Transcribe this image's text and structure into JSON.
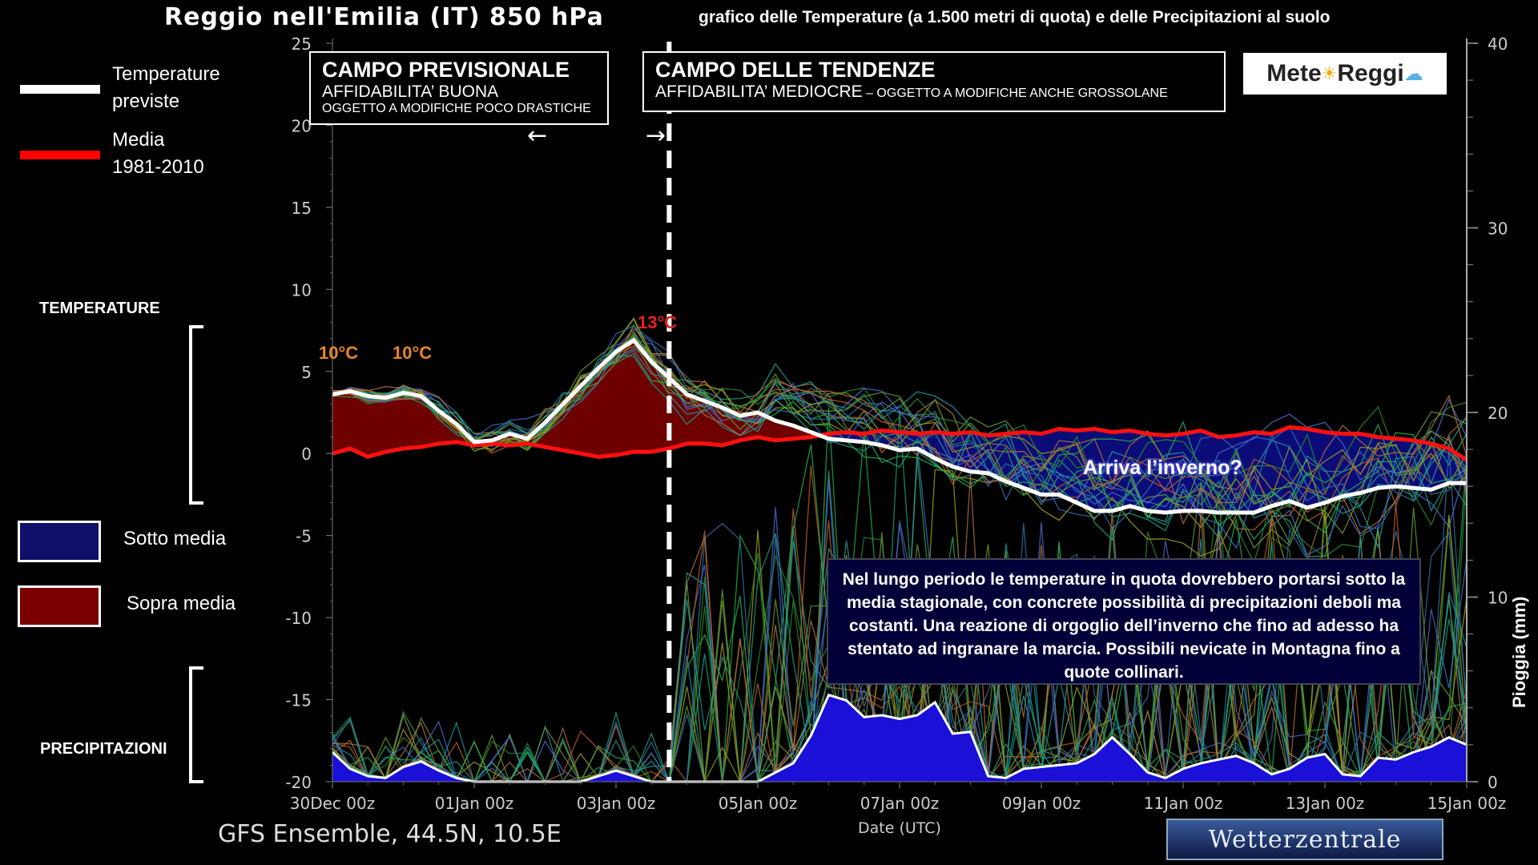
{
  "header": {
    "title": "Reggio nell'Emilia  (IT)  850 hPa",
    "subtitle": "grafico delle Temperature  (a 1.500 metri di quota) e delle Precipitazioni al suolo"
  },
  "legend": {
    "items": [
      {
        "label_line1": "Temperature",
        "label_line2": "previste",
        "color": "#ffffff"
      },
      {
        "label_line1": "Media",
        "label_line2": "1981-2010",
        "color": "#ff0000"
      }
    ],
    "areas": [
      {
        "label": "Sotto media",
        "color": "#10106a"
      },
      {
        "label": "Sopra media",
        "color": "#7a0000"
      }
    ]
  },
  "side_labels": {
    "temperature": "TEMPERATURE",
    "precipitation": "PRECIPITAZIONI"
  },
  "fields": {
    "forecast": {
      "title": "CAMPO PREVISIONALE",
      "line2": "AFFIDABILITA’ BUONA",
      "line3": "OGGETTO A MODIFICHE POCO DRASTICHE",
      "arrow": "←"
    },
    "trend": {
      "title": "CAMPO DELLE TENDENZE",
      "line2": "AFFIDABILITA’ MEDIOCRE",
      "line2b": " – OGGETTO A MODIFICHE ANCHE GROSSOLANE",
      "arrow": "→"
    }
  },
  "logo": {
    "text_a": "Mete",
    "sun_icon": "sun-icon",
    "text_b": "Reggi",
    "cloud_icon": "cloud-sun-icon"
  },
  "annotations": {
    "label_1": "10°C",
    "label_2": "10°C",
    "label_3": "13°C",
    "winter_question": "Arriva l’inverno?",
    "note": "Nel lungo periodo le temperature in quota dovrebbero portarsi sotto la media stagionale, con concrete possibilità di precipitazioni deboli ma costanti. Una reazione di orgoglio dell’inverno che fino ad adesso ha stentato ad ingranare la marcia. Possibili nevicate in Montagna fino a quote collinari."
  },
  "footer": {
    "source": "GFS Ensemble, 44.5N, 10.5E",
    "brand": "Wetterzentrale"
  },
  "colors": {
    "forecast_line": "#ffffff",
    "mean_line": "#ff1010",
    "above_fill": "#6e0000",
    "below_fill": "#0c0c78",
    "precip_fill": "#1a10d8",
    "ensemble": [
      "#2a8a2a",
      "#1a9aa0",
      "#4a6ad0",
      "#a0a020",
      "#c06020",
      "#20b050",
      "#6a9a30",
      "#3070b0",
      "#b07040",
      "#20a080"
    ]
  },
  "chart_data": {
    "type": "line",
    "xlabel": "Date (UTC)",
    "ylabel_left": "",
    "ylabel_right": "Pioggia (mm)",
    "ylim_left": [
      -20,
      25
    ],
    "ylim_right": [
      0,
      40
    ],
    "yticks_left": [
      25,
      20,
      15,
      10,
      5,
      0,
      -5,
      -10,
      -15,
      -20
    ],
    "yticks_right": [
      40,
      30,
      20,
      10,
      0
    ],
    "xlim": [
      "30Dec 00z",
      "15Jan 00z"
    ],
    "xticks": [
      {
        "day": 0,
        "label": "30Dec 00z"
      },
      {
        "day": 2,
        "label": "01Jan 00z"
      },
      {
        "day": 4,
        "label": "03Jan 00z"
      },
      {
        "day": 6,
        "label": "05Jan 00z"
      },
      {
        "day": 8,
        "label": "07Jan 00z"
      },
      {
        "day": 10,
        "label": "09Jan 00z"
      },
      {
        "day": 12,
        "label": "11Jan 00z"
      },
      {
        "day": 14,
        "label": "13Jan 00z"
      },
      {
        "day": 16,
        "label": "15Jan 00z"
      }
    ],
    "divider_day": 4.75,
    "series": [
      {
        "name": "Temperature previste",
        "x": [
          0,
          0.25,
          0.5,
          0.75,
          1,
          1.25,
          1.5,
          1.75,
          2,
          2.25,
          2.5,
          2.75,
          3,
          3.25,
          3.5,
          3.75,
          4,
          4.25,
          4.5,
          4.75,
          5,
          5.25,
          5.5,
          5.75,
          6,
          6.25,
          6.5,
          6.75,
          7,
          7.25,
          7.5,
          7.75,
          8,
          8.25,
          8.5,
          8.75,
          9,
          9.25,
          9.5,
          9.75,
          10,
          10.25,
          10.5,
          10.75,
          11,
          11.25,
          11.5,
          11.75,
          12,
          12.25,
          12.5,
          12.75,
          13,
          13.25,
          13.5,
          13.75,
          14,
          14.25,
          14.5,
          14.75,
          15,
          15.25,
          15.5,
          15.75,
          16
        ],
        "values": [
          3.6,
          3.8,
          3.5,
          3.4,
          3.7,
          3.5,
          2.6,
          1.8,
          0.7,
          0.8,
          1.2,
          0.9,
          1.9,
          3.0,
          4.1,
          5.2,
          6.2,
          6.9,
          5.6,
          4.6,
          3.6,
          3.2,
          2.8,
          2.3,
          2.5,
          2.0,
          1.7,
          1.3,
          0.9,
          0.8,
          0.7,
          0.5,
          0.2,
          0.3,
          -0.3,
          -0.8,
          -1.1,
          -1.2,
          -1.7,
          -2.1,
          -2.5,
          -2.5,
          -3.0,
          -3.5,
          -3.5,
          -3.2,
          -3.5,
          -3.6,
          -3.5,
          -3.5,
          -3.6,
          -3.6,
          -3.6,
          -3.2,
          -2.9,
          -3.3,
          -3.0,
          -2.6,
          -2.4,
          -2.1,
          -2.0,
          -2.1,
          -2.2,
          -1.8,
          -1.8
        ]
      },
      {
        "name": "Media 1981-2010",
        "x": [
          0,
          0.25,
          0.5,
          0.75,
          1,
          1.25,
          1.5,
          1.75,
          2,
          2.25,
          2.5,
          2.75,
          3,
          3.25,
          3.5,
          3.75,
          4,
          4.25,
          4.5,
          4.75,
          5,
          5.25,
          5.5,
          5.75,
          6,
          6.25,
          6.5,
          6.75,
          7,
          7.25,
          7.5,
          7.75,
          8,
          8.25,
          8.5,
          8.75,
          9,
          9.25,
          9.5,
          9.75,
          10,
          10.25,
          10.5,
          10.75,
          11,
          11.25,
          11.5,
          11.75,
          12,
          12.25,
          12.5,
          12.75,
          13,
          13.25,
          13.5,
          13.75,
          14,
          14.25,
          14.5,
          14.75,
          15,
          15.25,
          15.5,
          15.75,
          16
        ],
        "values": [
          0.0,
          0.3,
          -0.2,
          0.1,
          0.3,
          0.4,
          0.6,
          0.7,
          0.5,
          0.6,
          0.5,
          0.6,
          0.4,
          0.2,
          0.0,
          -0.2,
          -0.1,
          0.1,
          0.1,
          0.3,
          0.6,
          0.6,
          0.5,
          0.8,
          1.0,
          0.8,
          0.9,
          1.0,
          1.2,
          1.3,
          1.2,
          1.4,
          1.3,
          1.2,
          1.3,
          1.2,
          1.3,
          1.1,
          1.2,
          1.3,
          1.2,
          1.5,
          1.4,
          1.5,
          1.3,
          1.4,
          1.2,
          1.1,
          1.2,
          1.4,
          1.0,
          1.1,
          1.3,
          1.2,
          1.6,
          1.5,
          1.3,
          1.2,
          1.2,
          1.0,
          0.9,
          0.8,
          0.6,
          0.3,
          -0.4
        ]
      },
      {
        "name": "Pioggia (mm)",
        "axis": "right",
        "x": [
          0,
          0.25,
          0.5,
          0.75,
          1,
          1.25,
          1.5,
          1.75,
          2,
          2.25,
          2.5,
          2.75,
          3,
          3.25,
          3.5,
          3.75,
          4,
          4.25,
          4.5,
          4.75,
          5,
          5.25,
          5.5,
          5.75,
          6,
          6.25,
          6.5,
          6.75,
          7,
          7.25,
          7.5,
          7.75,
          8,
          8.25,
          8.5,
          8.75,
          9,
          9.25,
          9.5,
          9.75,
          10,
          10.25,
          10.5,
          10.75,
          11,
          11.25,
          11.5,
          11.75,
          12,
          12.25,
          12.5,
          12.75,
          13,
          13.25,
          13.5,
          13.75,
          14,
          14.25,
          14.5,
          14.75,
          15,
          15.25,
          15.5,
          15.75,
          16
        ],
        "values": [
          1.6,
          0.7,
          0.3,
          0.2,
          0.8,
          1.1,
          0.6,
          0.2,
          0.0,
          0.0,
          0.0,
          0.0,
          0.0,
          0.0,
          0.0,
          0.3,
          0.6,
          0.3,
          0.0,
          0.0,
          0.0,
          0.0,
          0.0,
          0.0,
          0.0,
          0.5,
          1.0,
          2.5,
          4.7,
          4.4,
          3.5,
          3.6,
          3.4,
          3.6,
          4.3,
          2.6,
          2.7,
          0.3,
          0.2,
          0.7,
          0.8,
          0.9,
          1.0,
          1.5,
          2.4,
          1.5,
          0.5,
          0.2,
          0.7,
          1.0,
          1.2,
          1.4,
          1.0,
          0.4,
          0.7,
          1.3,
          1.5,
          0.4,
          0.3,
          1.3,
          1.2,
          1.6,
          1.9,
          2.4,
          2.0
        ]
      }
    ]
  }
}
